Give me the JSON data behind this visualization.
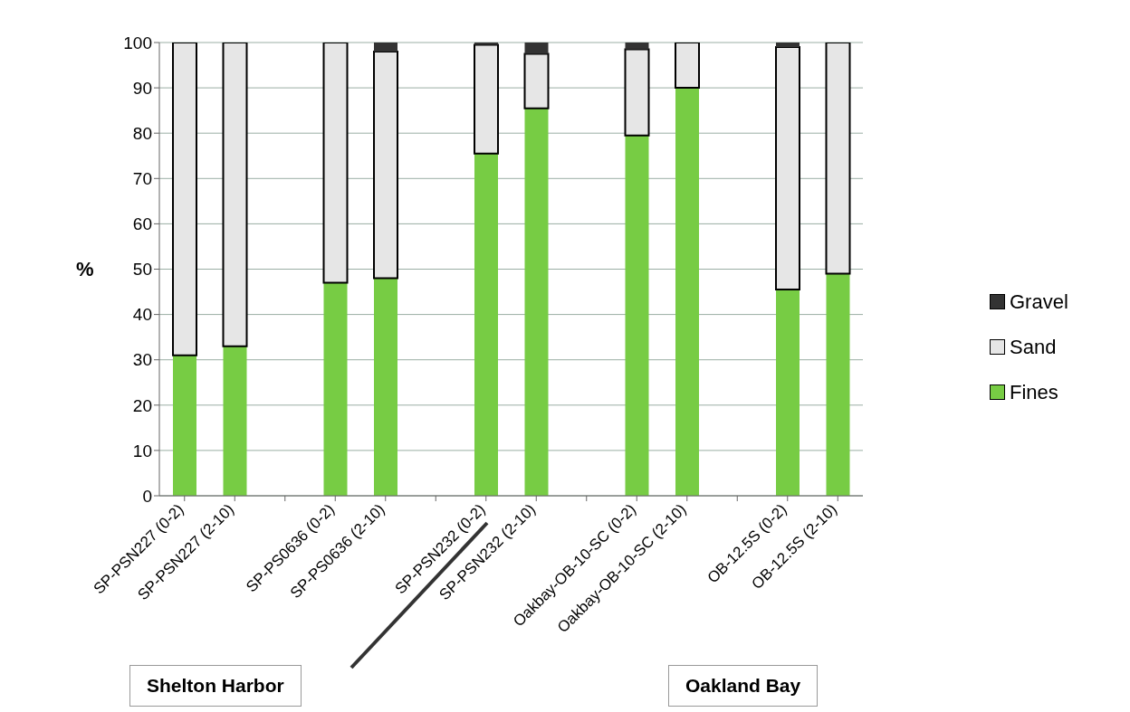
{
  "chart_data": {
    "type": "bar",
    "stacked": true,
    "ylabel": "%",
    "categories": [
      "SP-PSN227 (0-2)",
      "SP-PSN227 (2-10)",
      null,
      "SP-PS0636 (0-2)",
      "SP-PS0636 (2-10)",
      null,
      "SP-PSN232 (0-2)",
      "SP-PSN232 (2-10)",
      null,
      "Oakbay-OB-10-SC (0-2)",
      "Oakbay-OB-10-SC (2-10)",
      null,
      "OB-12.5S (0-2)",
      "OB-12.5S (2-10)"
    ],
    "series": [
      {
        "name": "Fines",
        "color": "#77cc44",
        "values": [
          31,
          33,
          null,
          47,
          48,
          null,
          75.5,
          85.5,
          null,
          79.5,
          90,
          null,
          45.5,
          49
        ]
      },
      {
        "name": "Sand",
        "color": "#e6e6e6",
        "values": [
          69,
          67,
          null,
          53,
          50,
          null,
          24,
          12,
          null,
          19,
          10,
          null,
          53.5,
          51
        ]
      },
      {
        "name": "Gravel",
        "color": "#333333",
        "values": [
          0,
          0,
          null,
          0,
          2,
          null,
          0.5,
          2.5,
          null,
          1.5,
          0,
          null,
          1,
          0
        ]
      }
    ],
    "ylim": [
      0,
      100
    ],
    "yticks": [
      0,
      10,
      20,
      30,
      40,
      50,
      60,
      70,
      80,
      90,
      100
    ],
    "grid": "y",
    "legend": "right",
    "annotations": [
      "Shelton Harbor",
      "Oakland Bay"
    ]
  }
}
